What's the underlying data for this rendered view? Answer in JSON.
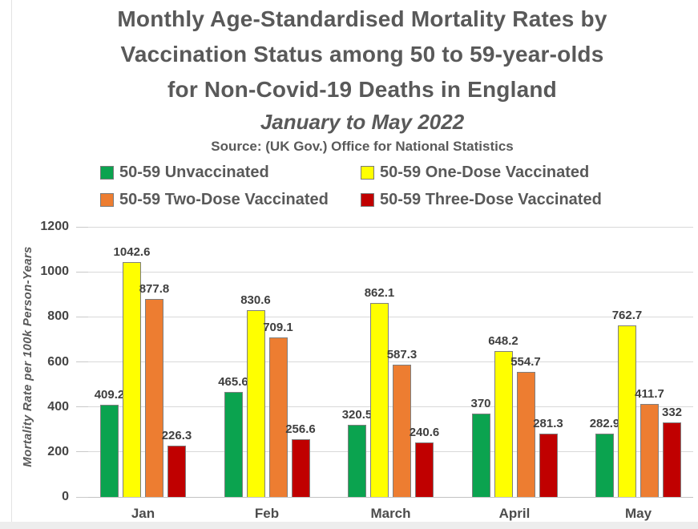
{
  "page": {
    "background": "#ffffff",
    "edge_strip_color": "#ededed"
  },
  "header": {
    "title_lines": [
      "Monthly Age-Standardised Mortality Rates by",
      "Vaccination Status among 50 to 59-year-olds",
      "for Non-Covid-19 Deaths in England"
    ],
    "subtitle": "January to May 2022",
    "source": "Source: (UK Gov.) Office for National Statistics"
  },
  "chart_data": {
    "type": "bar",
    "title": "Monthly Age-Standardised Mortality Rates by Vaccination Status among 50 to 59-year-olds for Non-Covid-19 Deaths in England",
    "subtitle": "January to May 2022",
    "categories": [
      "Jan",
      "Feb",
      "March",
      "April",
      "May"
    ],
    "series": [
      {
        "name": "50-59 Unvaccinated",
        "color": "#0ba34f",
        "values": [
          409.2,
          465.6,
          320.5,
          370,
          282.9
        ]
      },
      {
        "name": "50-59 One-Dose Vaccinated",
        "color": "#ffff00",
        "values": [
          1042.6,
          830.6,
          862.1,
          648.2,
          762.7
        ]
      },
      {
        "name": "50-59 Two-Dose Vaccinated",
        "color": "#ed7d31",
        "values": [
          877.8,
          709.1,
          587.3,
          554.7,
          411.7
        ]
      },
      {
        "name": "50-59 Three-Dose Vaccinated",
        "color": "#c00000",
        "values": [
          226.3,
          256.6,
          240.6,
          281.3,
          332
        ]
      }
    ],
    "xlabel": "",
    "ylabel": "Mortality Rate per 100k Person-Years",
    "ylim": [
      0,
      1200
    ],
    "ytick_step": 200,
    "grid": true,
    "data_labels": true,
    "legend_position": "top",
    "bar_border_color": "#7f7f7f",
    "gridline_color": "#d9d9d9"
  }
}
